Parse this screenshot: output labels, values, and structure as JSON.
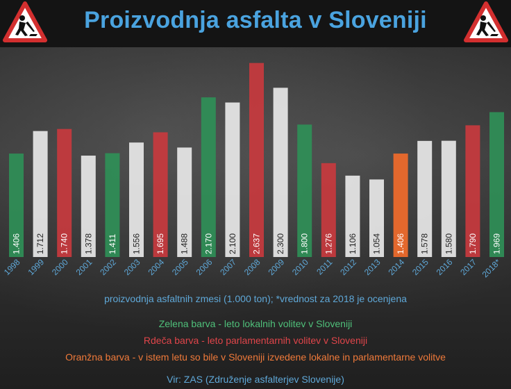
{
  "title": "Proizvodnja asfalta v Sloveniji",
  "icons": {
    "left": "road-work-sign-icon",
    "right": "road-work-sign-icon"
  },
  "colors": {
    "title": "#4aa3df",
    "green": "#2f8f57",
    "red": "#c83a3e",
    "white": "#e8e8e8",
    "orange": "#ec6a2c"
  },
  "chart_data": {
    "type": "bar",
    "categories": [
      "1998",
      "1999",
      "2000",
      "2001",
      "2002",
      "2003",
      "2004",
      "2005",
      "2006",
      "2007",
      "2008",
      "2009",
      "2010",
      "2011",
      "2012",
      "2013",
      "2014",
      "2015",
      "2016",
      "2017",
      "2018*"
    ],
    "values": [
      1406,
      1712,
      1740,
      1378,
      1411,
      1556,
      1695,
      1488,
      2170,
      2100,
      2637,
      2300,
      1800,
      1276,
      1106,
      1054,
      1406,
      1578,
      1580,
      1790,
      1969
    ],
    "value_labels": [
      "1.406",
      "1.712",
      "1.740",
      "1.378",
      "1.411",
      "1.556",
      "1.695",
      "1.488",
      "2.170",
      "2.100",
      "2.637",
      "2.300",
      "1.800",
      "1.276",
      "1.106",
      "1.054",
      "1.406",
      "1.578",
      "1.580",
      "1.790",
      "1.969"
    ],
    "bar_colors": [
      "green",
      "white",
      "red",
      "white",
      "green",
      "white",
      "red",
      "white",
      "green",
      "white",
      "red",
      "white",
      "green",
      "red",
      "white",
      "white",
      "orange",
      "white",
      "white",
      "red",
      "green"
    ],
    "ylim": [
      0,
      2700
    ],
    "grid": false,
    "legend": "bottom"
  },
  "footer": {
    "note": "proizvodnja asfaltnih zmesi (1.000 ton); *vrednost za 2018 je ocenjena",
    "legend_green": "Zelena barva - leto lokalnih volitev v Sloveniji",
    "legend_red": "Rdeča barva - leto parlamentarnih volitev v Sloveniji",
    "legend_orange": "Oranžna barva - v istem letu so bile v Sloveniji izvedene lokalne in parlamentarne volitve",
    "source": "Vir: ZAS (Združenje asfalterjev Slovenije)"
  }
}
